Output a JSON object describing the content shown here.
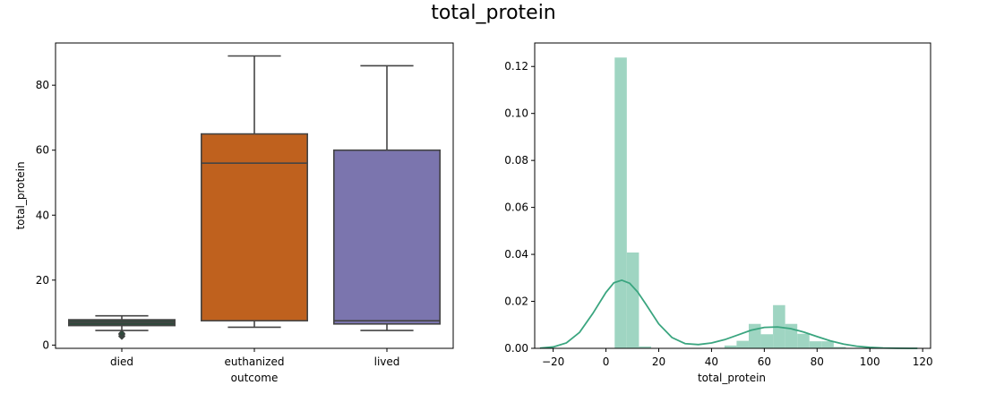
{
  "figure_title": "total_protein",
  "chart_data": [
    {
      "type": "box",
      "xlabel": "outcome",
      "ylabel": "total_protein",
      "ylim": [
        -1,
        93
      ],
      "yticks": [
        0,
        20,
        40,
        60,
        80
      ],
      "grid": false,
      "categories": [
        "died",
        "euthanized",
        "lived"
      ],
      "boxes": [
        {
          "category": "died",
          "whisker_low": 4.5,
          "q1": 6.0,
          "median": 7.0,
          "q3": 7.8,
          "whisker_high": 9.0,
          "outliers": [
            2.7,
            3.2,
            3.6
          ],
          "color": "#2f4a3c"
        },
        {
          "category": "euthanized",
          "whisker_low": 5.5,
          "q1": 7.5,
          "median": 56.0,
          "q3": 65.0,
          "whisker_high": 89.0,
          "outliers": [],
          "color": "#bf611e"
        },
        {
          "category": "lived",
          "whisker_low": 4.5,
          "q1": 6.5,
          "median": 7.5,
          "q3": 60.0,
          "whisker_high": 86.0,
          "outliers": [],
          "color": "#7b75ae"
        }
      ]
    },
    {
      "type": "histogram",
      "xlabel": "total_protein",
      "ylabel": "",
      "xlim": [
        -27,
        123
      ],
      "ylim": [
        0,
        0.13
      ],
      "xticks": [
        -20,
        0,
        20,
        40,
        60,
        80,
        100,
        120
      ],
      "yticks": [
        0.0,
        0.02,
        0.04,
        0.06,
        0.08,
        0.1,
        0.12
      ],
      "grid": false,
      "bar_color": "#9fd5c2",
      "kde_color": "#3aa57f",
      "bins": [
        {
          "x0": 3.3,
          "x1": 7.9,
          "value": 0.1238
        },
        {
          "x0": 7.9,
          "x1": 12.5,
          "value": 0.0408
        },
        {
          "x0": 12.5,
          "x1": 17.1,
          "value": 0.0008
        },
        {
          "x0": 40.3,
          "x1": 44.9,
          "value": 0.0002
        },
        {
          "x0": 44.9,
          "x1": 49.5,
          "value": 0.0012
        },
        {
          "x0": 49.5,
          "x1": 54.1,
          "value": 0.0032
        },
        {
          "x0": 54.1,
          "x1": 58.7,
          "value": 0.0104
        },
        {
          "x0": 58.7,
          "x1": 63.3,
          "value": 0.006
        },
        {
          "x0": 63.3,
          "x1": 67.9,
          "value": 0.0184
        },
        {
          "x0": 67.9,
          "x1": 72.5,
          "value": 0.0104
        },
        {
          "x0": 72.5,
          "x1": 77.1,
          "value": 0.0062
        },
        {
          "x0": 77.1,
          "x1": 81.7,
          "value": 0.003
        },
        {
          "x0": 81.7,
          "x1": 86.3,
          "value": 0.003
        },
        {
          "x0": 86.3,
          "x1": 90.9,
          "value": 0.0006
        }
      ],
      "kde": {
        "x": [
          -25,
          -20,
          -15,
          -10,
          -5,
          0,
          3,
          6,
          9,
          12,
          15,
          20,
          25,
          30,
          35,
          40,
          45,
          50,
          55,
          60,
          65,
          70,
          75,
          80,
          85,
          90,
          95,
          100,
          105,
          110,
          115,
          118
        ],
        "y": [
          0.0001,
          0.0006,
          0.0023,
          0.0068,
          0.0148,
          0.0238,
          0.0279,
          0.029,
          0.0277,
          0.024,
          0.019,
          0.0104,
          0.0046,
          0.002,
          0.0016,
          0.0023,
          0.0037,
          0.0057,
          0.0077,
          0.0089,
          0.0091,
          0.0084,
          0.0069,
          0.005,
          0.0032,
          0.0018,
          0.0009,
          0.0004,
          0.00015,
          5e-05,
          1e-05,
          0.0
        ]
      }
    }
  ]
}
